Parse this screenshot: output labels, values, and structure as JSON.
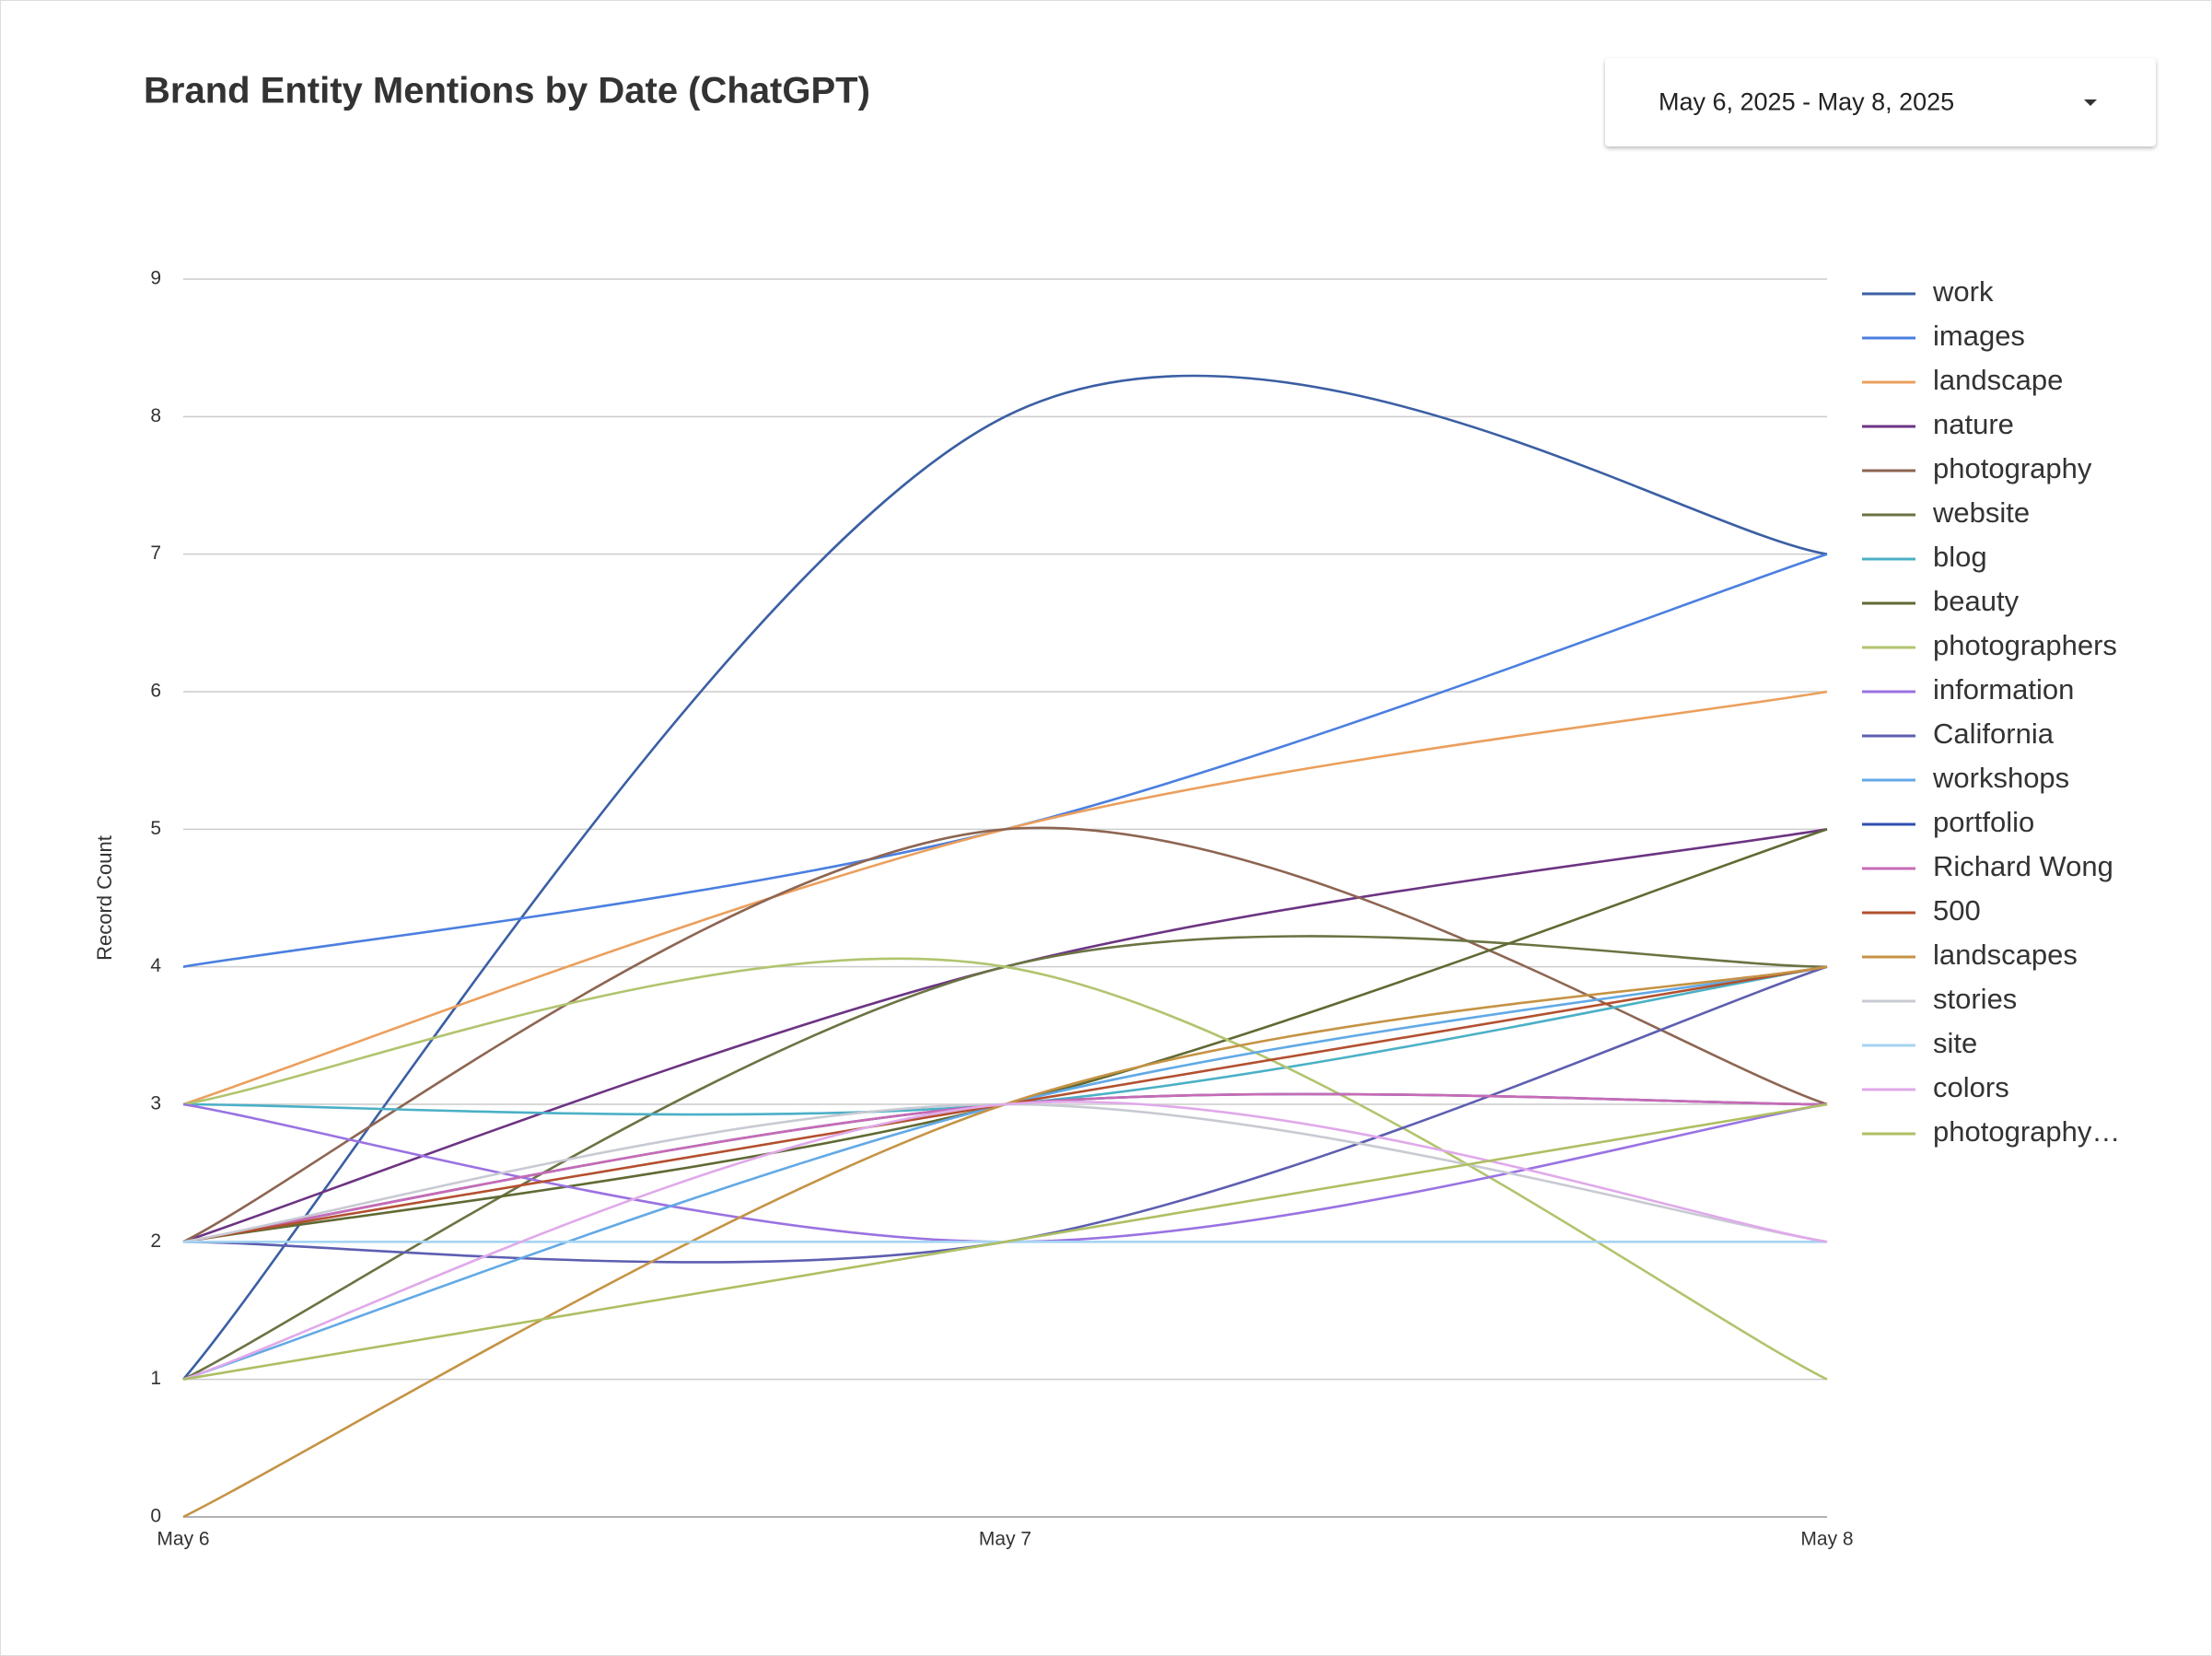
{
  "date_range": "May 6, 2025 - May 8, 2025",
  "chart_data": {
    "type": "line",
    "title": "Brand Entity Mentions by Date (ChatGPT)",
    "y_label": "Record Count",
    "categories": [
      "May 6",
      "May 7",
      "May 8"
    ],
    "ylim": [
      0,
      9
    ],
    "yticks": [
      0,
      1,
      2,
      3,
      4,
      5,
      6,
      7,
      8,
      9
    ],
    "grid": true,
    "smooth": true,
    "legend": "right",
    "series": [
      {
        "name": "work",
        "color": "#3b5fa3",
        "values": [
          1,
          8,
          7
        ]
      },
      {
        "name": "images",
        "color": "#4b7fe0",
        "values": [
          4,
          5,
          7
        ]
      },
      {
        "name": "landscape",
        "color": "#eb9f5c",
        "values": [
          3,
          5,
          6
        ]
      },
      {
        "name": "nature",
        "color": "#6c3483",
        "values": [
          2,
          4,
          5
        ]
      },
      {
        "name": "photography",
        "color": "#8d6552",
        "values": [
          2,
          5,
          3
        ]
      },
      {
        "name": "website",
        "color": "#6b7343",
        "values": [
          1,
          4,
          4
        ]
      },
      {
        "name": "blog",
        "color": "#4bb0c6",
        "values": [
          3,
          3,
          4
        ]
      },
      {
        "name": "beauty",
        "color": "#5f6a33",
        "values": [
          2,
          3,
          5
        ]
      },
      {
        "name": "photographers",
        "color": "#b1c46e",
        "values": [
          3,
          4,
          1
        ]
      },
      {
        "name": "information",
        "color": "#9a72e2",
        "values": [
          3,
          2,
          3
        ]
      },
      {
        "name": "California",
        "color": "#5d5eb0",
        "values": [
          2,
          2,
          4
        ]
      },
      {
        "name": "workshops",
        "color": "#62a9e6",
        "values": [
          1,
          3,
          4
        ]
      },
      {
        "name": "portfolio",
        "color": "#2f4fb0",
        "values": [
          2,
          3,
          3
        ]
      },
      {
        "name": "Richard Wong",
        "color": "#c86bb5",
        "values": [
          2,
          3,
          3
        ]
      },
      {
        "name": "500",
        "color": "#b3502f",
        "values": [
          2,
          3,
          4
        ]
      },
      {
        "name": "landscapes",
        "color": "#c59345",
        "values": [
          0,
          3,
          4
        ]
      },
      {
        "name": "stories",
        "color": "#c8cad3",
        "values": [
          2,
          3,
          2
        ]
      },
      {
        "name": "site",
        "color": "#a6d4f2",
        "values": [
          2,
          2,
          2
        ]
      },
      {
        "name": "colors",
        "color": "#e0a9ea",
        "values": [
          1,
          3,
          2
        ]
      },
      {
        "name": "photography…",
        "color": "#aebf62",
        "values": [
          1,
          2,
          3
        ]
      }
    ]
  }
}
